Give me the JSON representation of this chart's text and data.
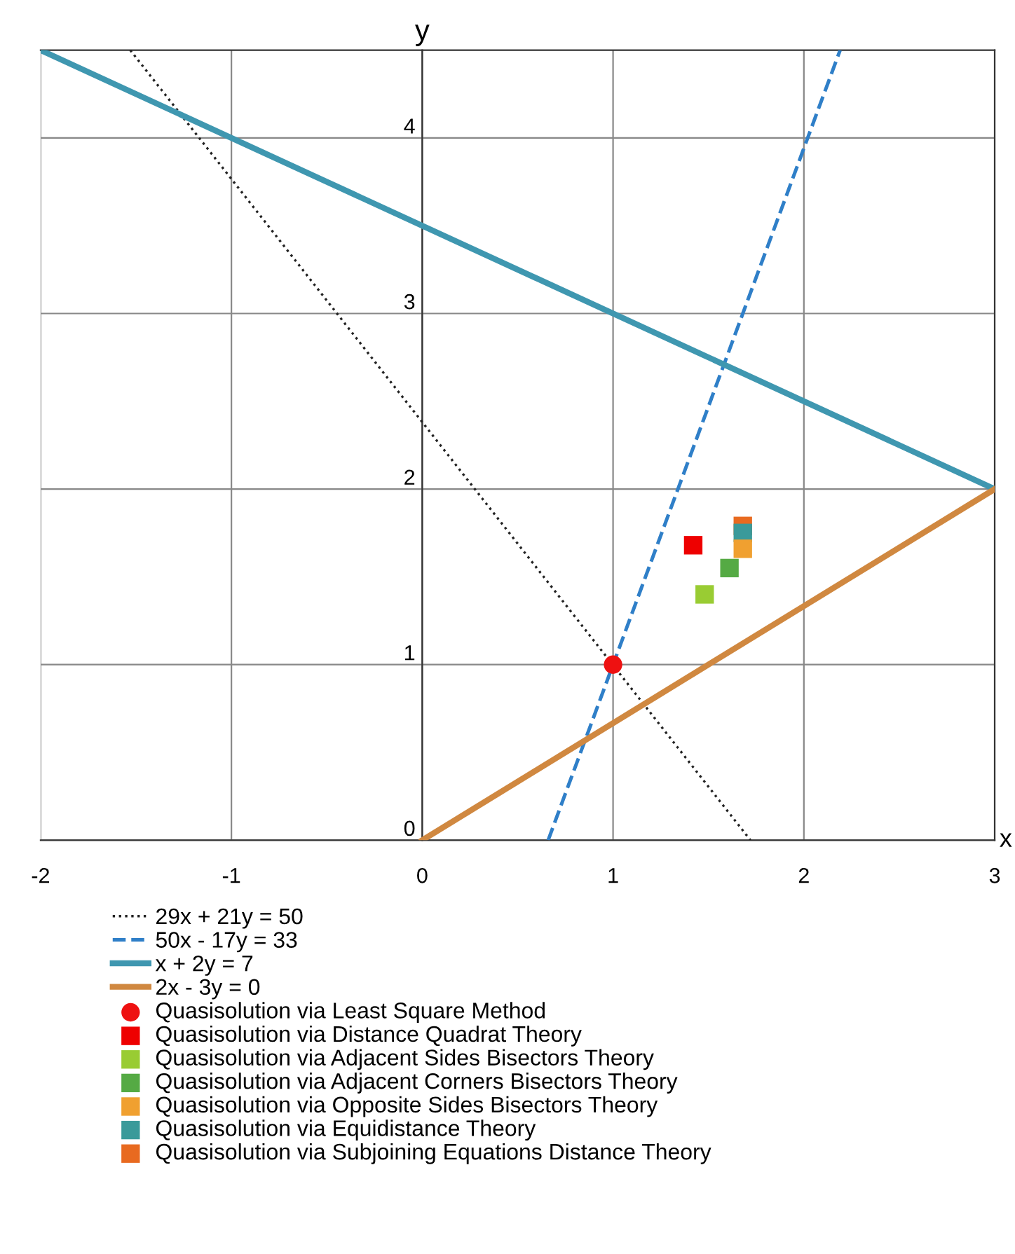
{
  "chart_data": {
    "type": "scatter",
    "xlabel": "x",
    "ylabel": "y",
    "xlim": [
      -2,
      3
    ],
    "ylim": [
      0,
      4.5
    ],
    "xticks": [
      -2,
      -1,
      0,
      1,
      2,
      3
    ],
    "yticks": [
      0,
      1,
      2,
      3,
      4
    ],
    "grid": true,
    "legend": "bottom",
    "series": [
      {
        "name": "29x + 21y = 50",
        "type": "line",
        "line_style": "dotted",
        "color": "#222222",
        "x": [
          -1.53,
          1.72
        ],
        "values": [
          4.5,
          0
        ]
      },
      {
        "name": "50x - 17y = 33",
        "type": "line",
        "line_style": "dashed",
        "color": "#2f7fc8",
        "x": [
          0.66,
          2.19
        ],
        "values": [
          0,
          4.5
        ]
      },
      {
        "name": "x + 2y = 7",
        "type": "line",
        "line_style": "solid",
        "color": "#3f97b0",
        "x": [
          -2,
          3
        ],
        "values": [
          4.5,
          2
        ]
      },
      {
        "name": "2x - 3y = 0",
        "type": "line",
        "line_style": "solid",
        "color": "#d08840",
        "x": [
          0,
          3
        ],
        "values": [
          0,
          2
        ]
      },
      {
        "name": "Quasisolution via Least Square Method",
        "marker": "circle",
        "color": "#ee1111",
        "x": [
          1
        ],
        "values": [
          1
        ]
      },
      {
        "name": "Quasisolution via Distance Quadrat Theory",
        "marker": "square",
        "color": "#ee0000",
        "x": [
          1.42
        ],
        "values": [
          1.68
        ]
      },
      {
        "name": "Quasisolution via Adjacent Sides Bisectors Theory",
        "marker": "square",
        "color": "#99cc33",
        "x": [
          1.48
        ],
        "values": [
          1.4
        ]
      },
      {
        "name": "Quasisolution via Adjacent Corners Bisectors Theory",
        "marker": "square",
        "color": "#55aa44",
        "x": [
          1.61
        ],
        "values": [
          1.55
        ]
      },
      {
        "name": "Quasisolution via Opposite Sides Bisectors Theory",
        "marker": "square",
        "color": "#f0a030",
        "x": [
          1.68
        ],
        "values": [
          1.66
        ]
      },
      {
        "name": "Quasisolution via Equidistance Theory",
        "marker": "square",
        "color": "#3a9a9a",
        "x": [
          1.68
        ],
        "values": [
          1.75
        ]
      },
      {
        "name": "Quasisolution via Subjoining Equations Distance Theory",
        "marker": "square",
        "color": "#e86a20",
        "x": [
          1.68
        ],
        "values": [
          1.79
        ]
      }
    ]
  }
}
